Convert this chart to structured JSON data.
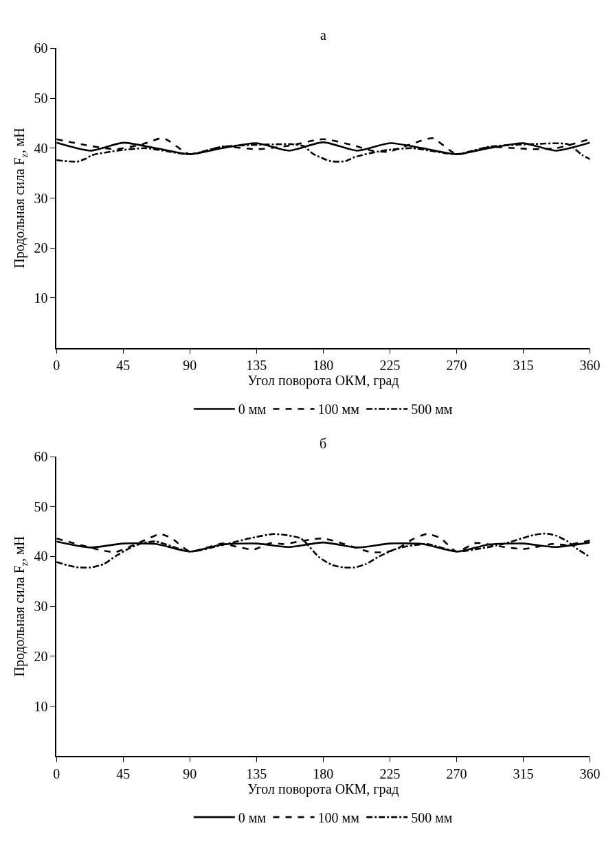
{
  "chart_data": [
    {
      "type": "line",
      "title": "а",
      "xlabel": "Угол поворота ОКМ, град",
      "ylabel": "Продольная сила F$_{z}$, мН",
      "xlim": [
        0,
        360
      ],
      "xticks": [
        0,
        45,
        90,
        135,
        180,
        225,
        270,
        315,
        360
      ],
      "ylim": [
        0,
        60
      ],
      "yticks": [
        10,
        20,
        30,
        40,
        50,
        60
      ],
      "grid": false,
      "legend": "bottom",
      "marker": "none",
      "series": [
        {
          "name": "0 мм",
          "color": "#000000",
          "line_style": "solid",
          "x": [
            0,
            23,
            45,
            67,
            90,
            112,
            135,
            157,
            180,
            203,
            225,
            247,
            270,
            292,
            315,
            337,
            360
          ],
          "values": [
            41.1,
            39.5,
            41.1,
            40.0,
            38.8,
            40.0,
            41.0,
            39.5,
            41.2,
            39.5,
            41.0,
            40.0,
            38.8,
            40.0,
            41.0,
            39.5,
            41.1
          ]
        },
        {
          "name": "100 мм",
          "color": "#000000",
          "line_style": "dashed",
          "x": [
            0,
            20,
            40,
            58,
            72,
            90,
            112,
            135,
            157,
            180,
            200,
            213,
            224,
            244,
            254,
            270,
            292,
            310,
            322,
            337,
            360
          ],
          "values": [
            41.8,
            40.6,
            39.8,
            40.8,
            42.0,
            38.8,
            40.3,
            39.8,
            40.5,
            41.8,
            40.6,
            39.5,
            39.3,
            41.3,
            42.0,
            38.8,
            40.2,
            40.0,
            39.8,
            40.0,
            41.8
          ]
        },
        {
          "name": "500 мм",
          "color": "#000000",
          "line_style": "dashdot",
          "x": [
            0,
            14,
            19,
            24,
            41,
            60,
            90,
            112,
            150,
            159,
            167,
            173,
            185,
            195,
            201,
            220,
            240,
            270,
            292,
            320,
            345,
            355,
            360
          ],
          "values": [
            37.6,
            37.3,
            37.8,
            38.6,
            39.5,
            40.0,
            38.8,
            40.3,
            40.8,
            40.8,
            40.4,
            38.9,
            37.4,
            37.4,
            38.2,
            39.5,
            40.0,
            38.8,
            40.3,
            40.8,
            40.8,
            38.6,
            37.8
          ]
        }
      ]
    },
    {
      "type": "line",
      "title": "б",
      "xlabel": "Угол поворота ОКМ, град",
      "ylabel": "Продольная сила F$_{z}$, мН",
      "xlim": [
        0,
        360
      ],
      "xticks": [
        0,
        45,
        90,
        135,
        180,
        225,
        270,
        315,
        360
      ],
      "ylim": [
        0,
        60
      ],
      "yticks": [
        10,
        20,
        30,
        40,
        50,
        60
      ],
      "grid": false,
      "legend": "bottom",
      "marker": "none",
      "series": [
        {
          "name": "0 мм",
          "color": "#000000",
          "line_style": "solid",
          "x": [
            0,
            23,
            45,
            67,
            90,
            112,
            135,
            157,
            180,
            203,
            225,
            247,
            270,
            292,
            315,
            337,
            360
          ],
          "values": [
            43.0,
            41.8,
            42.6,
            42.5,
            41.0,
            42.4,
            42.6,
            41.9,
            42.8,
            41.8,
            42.6,
            42.5,
            41.0,
            42.4,
            42.6,
            41.9,
            42.8
          ]
        },
        {
          "name": "100 мм",
          "color": "#000000",
          "line_style": "dashed",
          "x": [
            0,
            31,
            40,
            59,
            70,
            78,
            90,
            112,
            121,
            133,
            145,
            153,
            180,
            212,
            223,
            232,
            240,
            250,
            259,
            270,
            283,
            300,
            315,
            335,
            344,
            360
          ],
          "values": [
            43.6,
            41.2,
            40.9,
            43.2,
            44.5,
            43.6,
            41.0,
            42.6,
            42.0,
            41.4,
            42.7,
            42.5,
            43.6,
            40.9,
            40.9,
            41.9,
            43.4,
            44.5,
            43.7,
            41.0,
            42.7,
            42.0,
            41.5,
            42.5,
            42.3,
            43.2
          ]
        },
        {
          "name": "500 мм",
          "color": "#000000",
          "line_style": "dashdot",
          "x": [
            0,
            8,
            15,
            23,
            32,
            40,
            49,
            58,
            67,
            90,
            112,
            130,
            147,
            165,
            177,
            186,
            194,
            201,
            209,
            217,
            230,
            250,
            270,
            300,
            322,
            330,
            337,
            345,
            351,
            360
          ],
          "values": [
            38.9,
            38.2,
            37.8,
            37.8,
            38.5,
            40.1,
            41.6,
            42.7,
            43.0,
            41.0,
            42.3,
            43.6,
            44.5,
            43.6,
            39.9,
            38.3,
            37.8,
            37.8,
            38.5,
            39.9,
            41.6,
            42.5,
            41.0,
            42.4,
            44.3,
            44.6,
            44.2,
            43.0,
            41.6,
            39.9
          ]
        }
      ]
    }
  ]
}
